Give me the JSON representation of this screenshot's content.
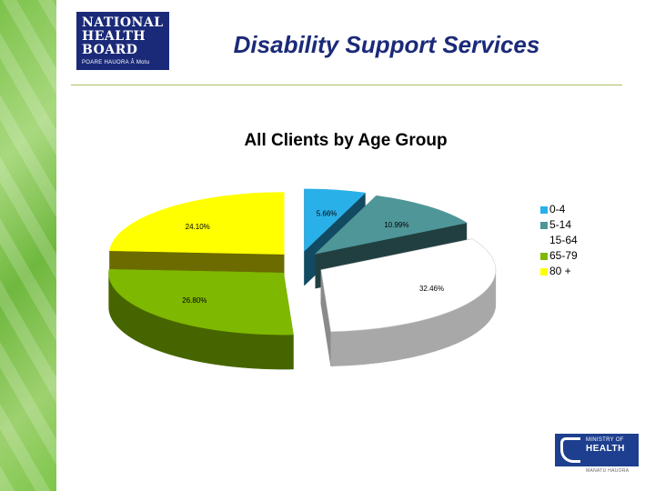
{
  "header": {
    "title": "Disability Support Services",
    "logo_left": {
      "line1": "NATIONAL",
      "line2": "HEALTH",
      "line3": "BOARD",
      "tagline": "POARE HAUORA Â Motu"
    },
    "logo_right": {
      "line1": "MINISTRY OF",
      "line2": "HEALTH",
      "tagline": "MANATŪ HAUORA"
    }
  },
  "chart_data": {
    "type": "pie",
    "style": "3d-exploded",
    "title": "All Clients by Age Group",
    "legend_position": "right",
    "categories": [
      "0-4",
      "5-14",
      "15-64",
      "65-79",
      "80 +"
    ],
    "values": [
      5.66,
      10.99,
      32.46,
      26.8,
      24.1
    ],
    "labels": [
      "5.66%",
      "10.99%",
      "32.46%",
      "26.80%",
      "24.10%"
    ],
    "colors": [
      "#2ab0e8",
      "#4f9699",
      "#ffffff",
      "#7fb800",
      "#ffff00"
    ]
  }
}
